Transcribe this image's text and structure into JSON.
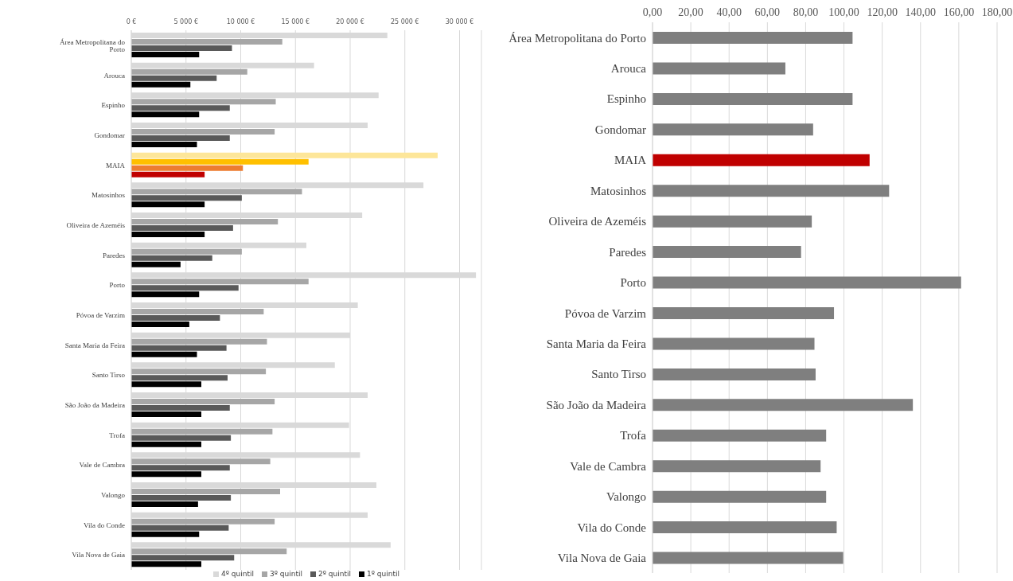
{
  "chart_data": [
    {
      "type": "bar",
      "orientation": "horizontal",
      "categories": [
        "Área Metropolitana do Porto",
        "Arouca",
        "Espinho",
        "Gondomar",
        "MAIA",
        "Matosinhos",
        "Oliveira de Azeméis",
        "Paredes",
        "Porto",
        "Póvoa de Varzim",
        "Santa Maria da Feira",
        "Santo Tirso",
        "São João da Madeira",
        "Trofa",
        "Vale de Cambra",
        "Valongo",
        "Vila do Conde",
        "Vila Nova de Gaia"
      ],
      "series": [
        {
          "name": "4º quintil",
          "color": "#d9d9d9",
          "colors": [
            "#d9d9d9",
            "#d9d9d9",
            "#d9d9d9",
            "#d9d9d9",
            "#fde699",
            "#d9d9d9",
            "#d9d9d9",
            "#d9d9d9",
            "#d9d9d9",
            "#d9d9d9",
            "#d9d9d9",
            "#d9d9d9",
            "#d9d9d9",
            "#d9d9d9",
            "#d9d9d9",
            "#d9d9d9",
            "#d9d9d9",
            "#d9d9d9"
          ],
          "values": [
            23400,
            16700,
            22600,
            21600,
            28000,
            26700,
            21100,
            16000,
            31500,
            20700,
            20000,
            18600,
            21600,
            19900,
            20900,
            22400,
            21600,
            23700
          ]
        },
        {
          "name": "3º quintil",
          "color": "#a6a6a6",
          "colors": [
            "#a6a6a6",
            "#a6a6a6",
            "#a6a6a6",
            "#a6a6a6",
            "#ffc000",
            "#a6a6a6",
            "#a6a6a6",
            "#a6a6a6",
            "#a6a6a6",
            "#a6a6a6",
            "#a6a6a6",
            "#a6a6a6",
            "#a6a6a6",
            "#a6a6a6",
            "#a6a6a6",
            "#a6a6a6",
            "#a6a6a6",
            "#a6a6a6"
          ],
          "values": [
            13800,
            10600,
            13200,
            13100,
            16200,
            15600,
            13400,
            10100,
            16200,
            12100,
            12400,
            12300,
            13100,
            12900,
            12700,
            13600,
            13100,
            14200
          ]
        },
        {
          "name": "2º quintil",
          "color": "#595959",
          "colors": [
            "#595959",
            "#595959",
            "#595959",
            "#595959",
            "#ed7d31",
            "#595959",
            "#595959",
            "#595959",
            "#595959",
            "#595959",
            "#595959",
            "#595959",
            "#595959",
            "#595959",
            "#595959",
            "#595959",
            "#595959",
            "#595959"
          ],
          "values": [
            9200,
            7800,
            9000,
            9000,
            10200,
            10100,
            9300,
            7400,
            9800,
            8100,
            8700,
            8800,
            9000,
            9100,
            9000,
            9100,
            8900,
            9400
          ]
        },
        {
          "name": "1º quintil",
          "color": "#000000",
          "colors": [
            "#000000",
            "#000000",
            "#000000",
            "#000000",
            "#c00000",
            "#000000",
            "#000000",
            "#000000",
            "#000000",
            "#000000",
            "#000000",
            "#000000",
            "#000000",
            "#000000",
            "#000000",
            "#000000",
            "#000000",
            "#000000"
          ],
          "values": [
            6200,
            5400,
            6200,
            6000,
            6700,
            6700,
            6700,
            4500,
            6200,
            5300,
            6000,
            6400,
            6400,
            6400,
            6400,
            6100,
            6200,
            6400
          ]
        }
      ],
      "xlim": [
        0,
        32000
      ],
      "xticks": [
        {
          "value": 0,
          "label": "0 €"
        },
        {
          "value": 5000,
          "label": "5 000 €"
        },
        {
          "value": 10000,
          "label": "10 000 €"
        },
        {
          "value": 15000,
          "label": "15 000 €"
        },
        {
          "value": 20000,
          "label": "20 000 €"
        },
        {
          "value": 25000,
          "label": "25 000 €"
        },
        {
          "value": 30000,
          "label": "30 000 €"
        }
      ],
      "grid": "x",
      "legend": "bottom"
    },
    {
      "type": "bar",
      "orientation": "horizontal",
      "categories": [
        "Área Metropolitana do Porto",
        "Arouca",
        "Espinho",
        "Gondomar",
        "MAIA",
        "Matosinhos",
        "Oliveira de Azeméis",
        "Paredes",
        "Porto",
        "Póvoa de Varzim",
        "Santa Maria da Feira",
        "Santo Tirso",
        "São João da Madeira",
        "Trofa",
        "Vale de Cambra",
        "Valongo",
        "Vila do Conde",
        "Vila Nova de Gaia"
      ],
      "series": [
        {
          "color": "#7f7f7f",
          "colors": [
            "#7f7f7f",
            "#7f7f7f",
            "#7f7f7f",
            "#7f7f7f",
            "#c00000",
            "#7f7f7f",
            "#7f7f7f",
            "#7f7f7f",
            "#7f7f7f",
            "#7f7f7f",
            "#7f7f7f",
            "#7f7f7f",
            "#7f7f7f",
            "#7f7f7f",
            "#7f7f7f",
            "#7f7f7f",
            "#7f7f7f",
            "#7f7f7f"
          ],
          "values": [
            104.5,
            69.4,
            104.5,
            83.9,
            113.4,
            123.6,
            83.2,
            77.6,
            161.2,
            94.8,
            84.6,
            85.2,
            136.0,
            90.7,
            87.8,
            90.7,
            96.2,
            99.6
          ]
        }
      ],
      "xlim": [
        0,
        180
      ],
      "xticks": [
        {
          "value": 0,
          "label": "0,00"
        },
        {
          "value": 20,
          "label": "20,00"
        },
        {
          "value": 40,
          "label": "40,00"
        },
        {
          "value": 60,
          "label": "60,00"
        },
        {
          "value": 80,
          "label": "80,00"
        },
        {
          "value": 100,
          "label": "100,00"
        },
        {
          "value": 120,
          "label": "120,00"
        },
        {
          "value": 140,
          "label": "140,00"
        },
        {
          "value": 160,
          "label": "160,00"
        },
        {
          "value": 180,
          "label": "180,00"
        }
      ],
      "grid": "x",
      "legend": false
    }
  ]
}
